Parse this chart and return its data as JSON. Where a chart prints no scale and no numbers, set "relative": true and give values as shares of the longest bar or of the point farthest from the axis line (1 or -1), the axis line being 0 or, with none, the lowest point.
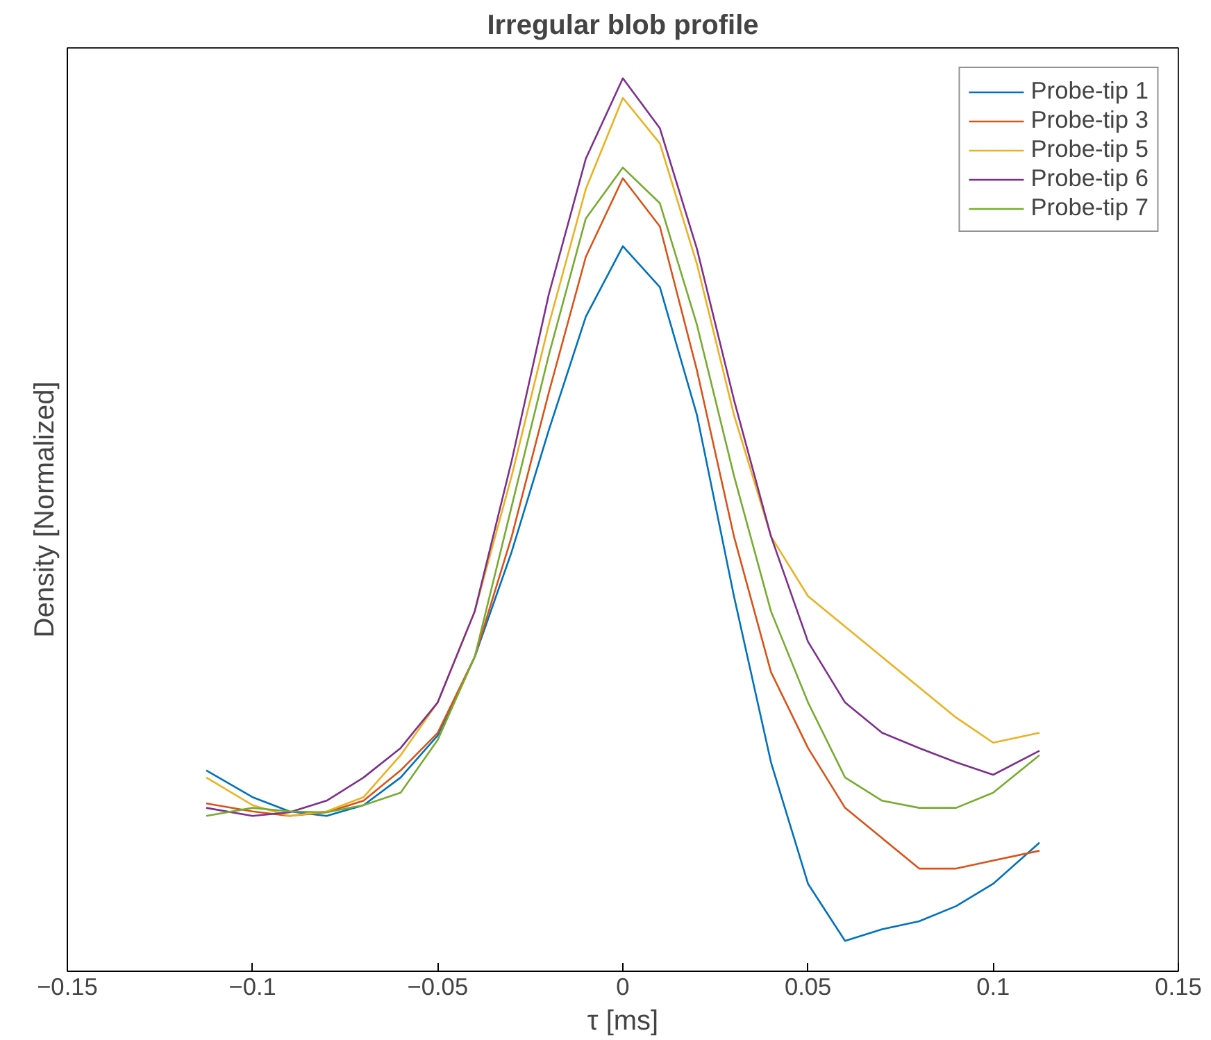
{
  "chart_data": {
    "type": "line",
    "title": "Irregular blob profile",
    "xlabel": "τ [ms]",
    "ylabel": "Density [Normalized]",
    "relative": true,
    "x": [
      -0.1125,
      -0.1,
      -0.09,
      -0.08,
      -0.07,
      -0.06,
      -0.05,
      -0.04,
      -0.03,
      -0.02,
      -0.01,
      0,
      0.01,
      0.02,
      0.03,
      0.04,
      0.05,
      0.06,
      0.07,
      0.08,
      0.09,
      0.1,
      0.1125
    ],
    "series": [
      {
        "name": "Probe-tip 1",
        "color": "#0072bd",
        "values": [
          0.225,
          0.195,
          0.179,
          0.174,
          0.186,
          0.217,
          0.264,
          0.352,
          0.47,
          0.606,
          0.733,
          0.812,
          0.766,
          0.623,
          0.42,
          0.234,
          0.098,
          0.034,
          0.047,
          0.056,
          0.073,
          0.098,
          0.144
        ]
      },
      {
        "name": "Probe-tip 3",
        "color": "#d95319",
        "values": [
          0.188,
          0.179,
          0.174,
          0.178,
          0.191,
          0.225,
          0.267,
          0.352,
          0.487,
          0.648,
          0.8,
          0.888,
          0.834,
          0.673,
          0.487,
          0.335,
          0.25,
          0.183,
          0.149,
          0.115,
          0.115,
          0.124,
          0.135
        ]
      },
      {
        "name": "Probe-tip 5",
        "color": "#edb120",
        "values": [
          0.217,
          0.186,
          0.174,
          0.179,
          0.195,
          0.242,
          0.301,
          0.403,
          0.555,
          0.724,
          0.876,
          0.978,
          0.927,
          0.792,
          0.623,
          0.487,
          0.42,
          0.386,
          0.352,
          0.318,
          0.284,
          0.256,
          0.267
        ]
      },
      {
        "name": "Probe-tip 6",
        "color": "#7e2f8e",
        "values": [
          0.183,
          0.174,
          0.178,
          0.191,
          0.217,
          0.25,
          0.301,
          0.403,
          0.572,
          0.758,
          0.91,
          1.0,
          0.944,
          0.809,
          0.64,
          0.487,
          0.369,
          0.301,
          0.267,
          0.25,
          0.234,
          0.22,
          0.247
        ]
      },
      {
        "name": "Probe-tip 7",
        "color": "#77ac30",
        "values": [
          0.174,
          0.183,
          0.179,
          0.178,
          0.186,
          0.2,
          0.259,
          0.352,
          0.521,
          0.69,
          0.843,
          0.9,
          0.86,
          0.724,
          0.555,
          0.403,
          0.301,
          0.217,
          0.191,
          0.183,
          0.183,
          0.2,
          0.242
        ]
      }
    ],
    "xlim": [
      -0.15,
      0.15
    ],
    "xticks": [
      -0.15,
      -0.1,
      -0.05,
      0,
      0.05,
      0.1,
      0.15
    ],
    "tick_labels": "x",
    "legend": "top right",
    "grid": false
  }
}
